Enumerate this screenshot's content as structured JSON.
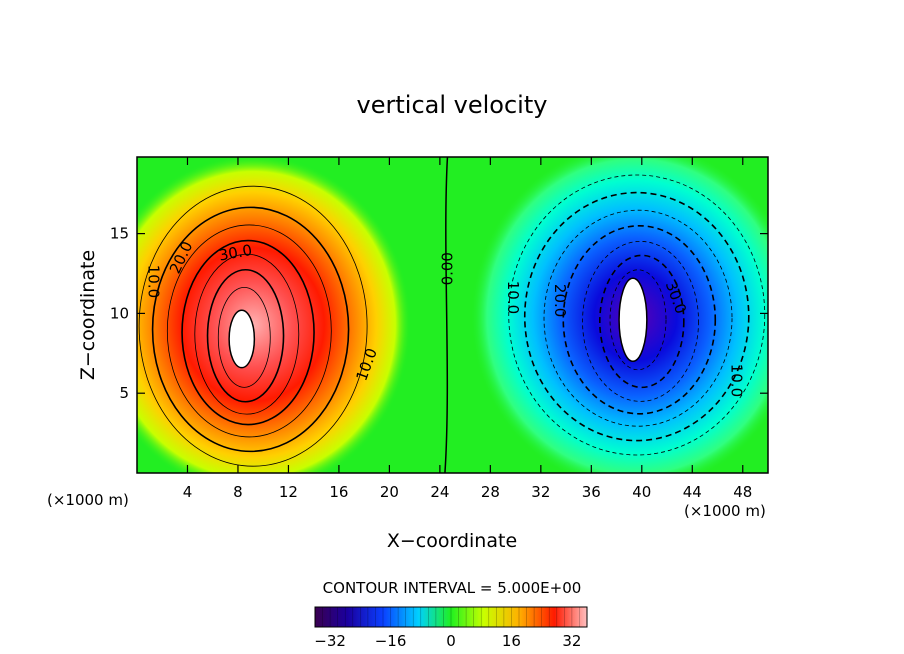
{
  "chart_data": {
    "type": "heatmap",
    "title": "vertical velocity",
    "xlabel": "X−coordinate",
    "ylabel": "Z−coordinate",
    "x_unit": "(×1000 m)",
    "xlim": [
      0,
      50
    ],
    "ylim": [
      0,
      19.8
    ],
    "x_ticks": [
      "4",
      "8",
      "12",
      "16",
      "20",
      "24",
      "28",
      "32",
      "36",
      "40",
      "44",
      "48"
    ],
    "y_ticks": [
      "5",
      "10",
      "15"
    ],
    "x_tick_values": [
      4,
      8,
      12,
      16,
      20,
      24,
      28,
      32,
      36,
      40,
      44,
      48
    ],
    "y_tick_values": [
      5,
      10,
      15
    ],
    "contour_interval_text": "CONTOUR INTERVAL = 5.000E+00",
    "contour_labels": [
      "10.0",
      "20.0",
      "30.0",
      "10.0",
      "0.00",
      "10.0",
      "20.0",
      "30.0",
      "10.0"
    ],
    "colorbar": {
      "min": -36,
      "max": 36,
      "ticks": [
        "−32",
        "−16",
        "0",
        "16",
        "32"
      ],
      "tick_values": [
        -32,
        -16,
        0,
        16,
        32
      ]
    },
    "series": [
      {
        "sign": 1,
        "center": [
          8.3,
          8.4
        ],
        "peak": 36,
        "core_radius": [
          1.0,
          1.8
        ]
      },
      {
        "sign": -1,
        "center": [
          39.3,
          9.6
        ],
        "peak": -36,
        "core_radius": [
          1.1,
          2.6
        ]
      }
    ]
  }
}
